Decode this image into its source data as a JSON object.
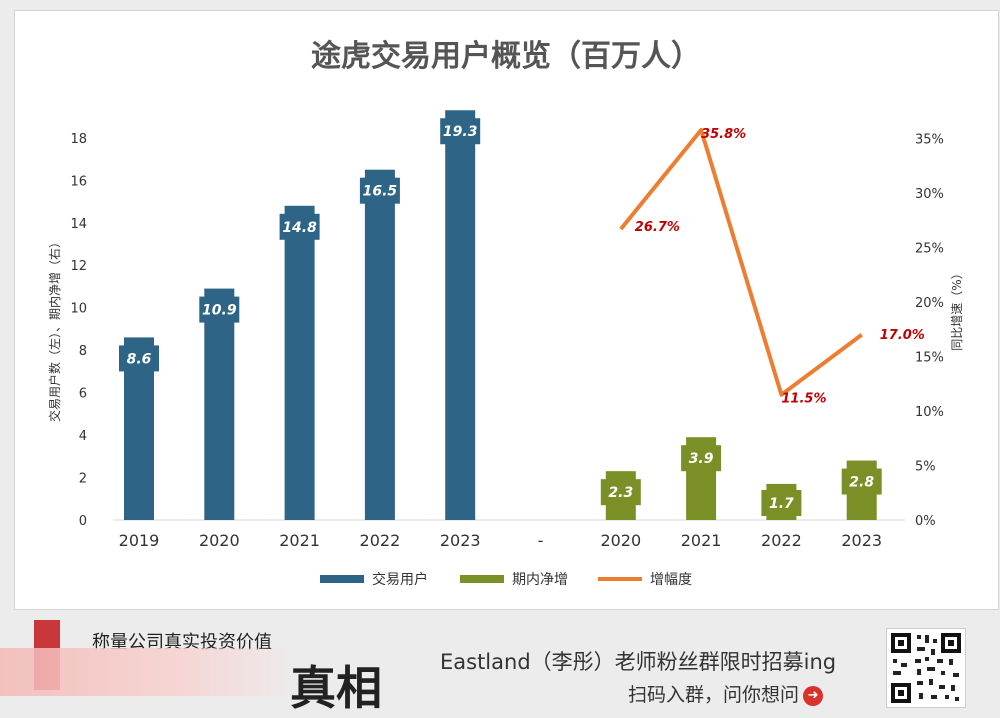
{
  "chart_data": {
    "type": "bar",
    "title": "途虎交易用户概览（百万人）",
    "left_axis": {
      "label": "交易用户数（左）、期内净增（右）",
      "ticks": [
        0,
        2,
        4,
        6,
        8,
        10,
        12,
        14,
        16,
        18
      ],
      "ylim": [
        0,
        19.5
      ]
    },
    "right_axis": {
      "label": "同比增速（%）",
      "ticks": [
        "0%",
        "5%",
        "10%",
        "15%",
        "20%",
        "25%",
        "30%",
        "35%"
      ],
      "ylim": [
        0,
        38
      ]
    },
    "categories": [
      "2019",
      "2020",
      "2021",
      "2022",
      "2023",
      "-",
      "2020",
      "2021",
      "2022",
      "2023"
    ],
    "series": [
      {
        "name": "交易用户",
        "kind": "bar",
        "axis": "left",
        "color": "#2e6587",
        "points": [
          {
            "category_index": 0,
            "value": 8.6,
            "label": "8.6"
          },
          {
            "category_index": 1,
            "value": 10.9,
            "label": "10.9"
          },
          {
            "category_index": 2,
            "value": 14.8,
            "label": "14.8"
          },
          {
            "category_index": 3,
            "value": 16.5,
            "label": "16.5"
          },
          {
            "category_index": 4,
            "value": 19.3,
            "label": "19.3"
          }
        ]
      },
      {
        "name": "期内净增",
        "kind": "bar",
        "axis": "left",
        "color": "#7a8f25",
        "points": [
          {
            "category_index": 6,
            "value": 2.3,
            "label": "2.3"
          },
          {
            "category_index": 7,
            "value": 3.9,
            "label": "3.9"
          },
          {
            "category_index": 8,
            "value": 1.7,
            "label": "1.7"
          },
          {
            "category_index": 9,
            "value": 2.8,
            "label": "2.8"
          }
        ]
      },
      {
        "name": "增幅度",
        "kind": "line",
        "axis": "right",
        "color": "#ed7d31",
        "label_color": "#c00000",
        "points": [
          {
            "category_index": 6,
            "value": 26.7,
            "label": "26.7%"
          },
          {
            "category_index": 7,
            "value": 35.8,
            "label": "35.8%"
          },
          {
            "category_index": 8,
            "value": 11.5,
            "label": "11.5%"
          },
          {
            "category_index": 9,
            "value": 17.0,
            "label": "17.0%"
          }
        ]
      }
    ],
    "legend": {
      "position": "bottom"
    },
    "grid": false
  },
  "banner": {
    "subtitle": "称量公司真实投资价值",
    "big_text": "真相",
    "headline": "Eastland（李彤）老师粉丝群限时招募ing",
    "cta": "扫码入群，问你想问",
    "cta_icon": "arrow-right-circle-icon"
  }
}
